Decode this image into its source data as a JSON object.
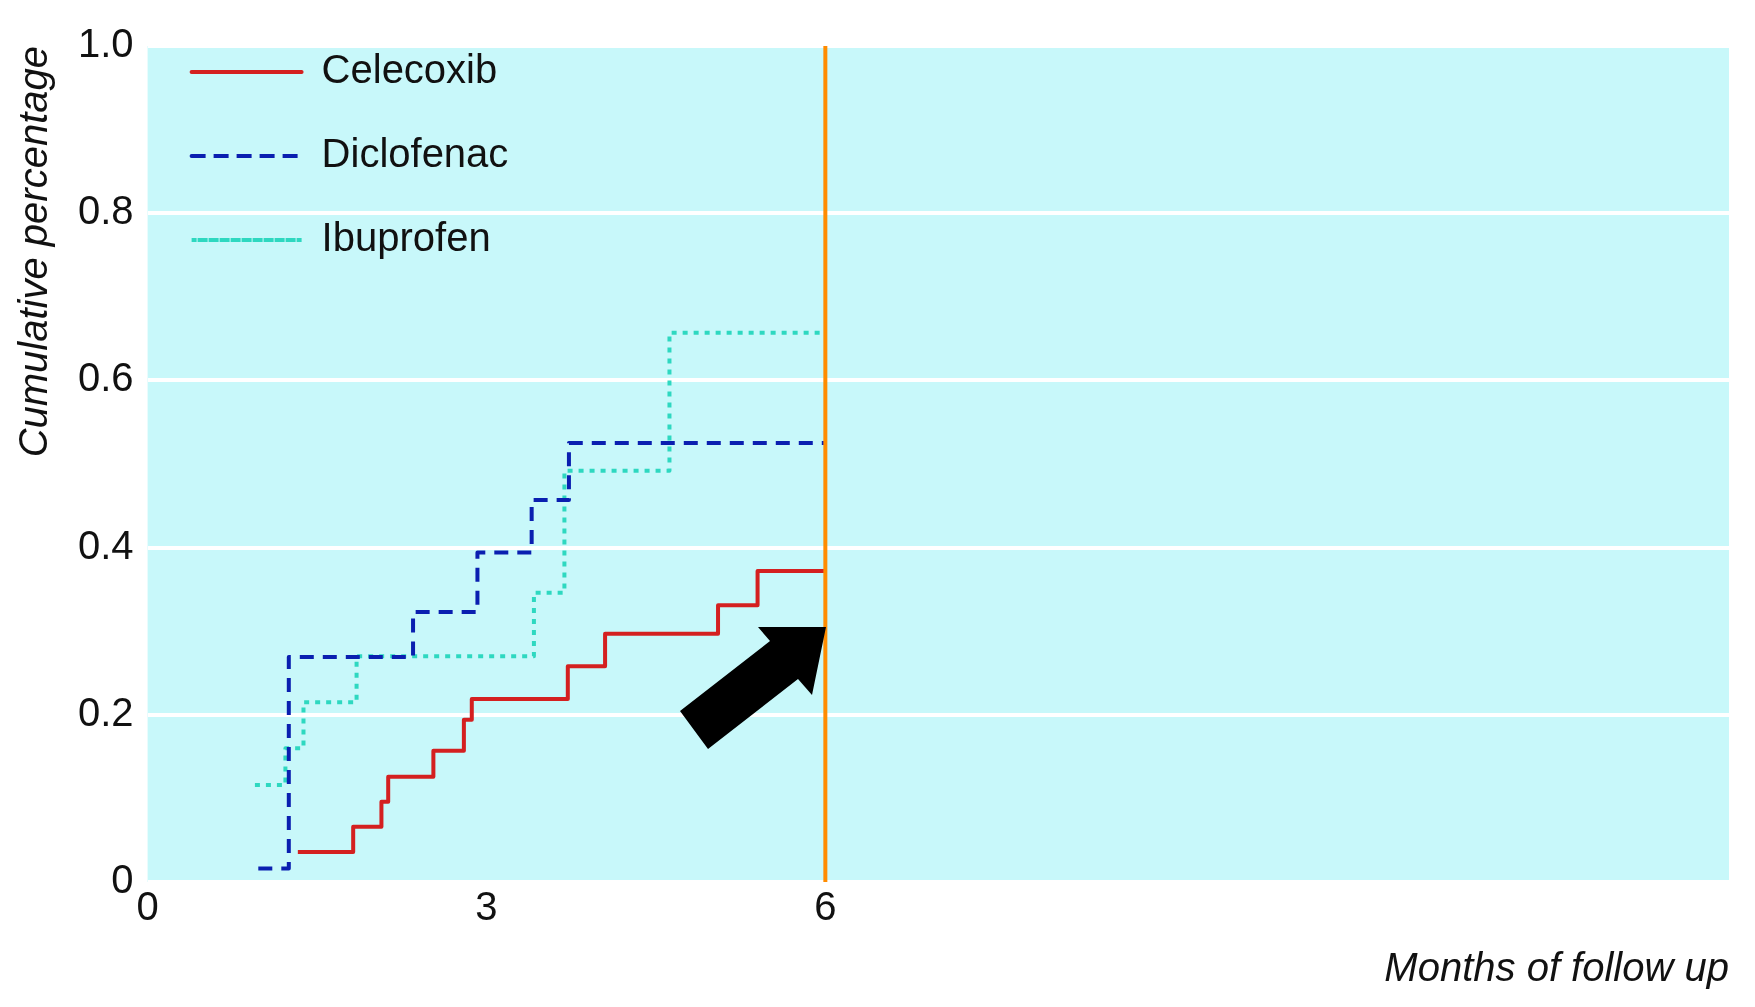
{
  "chart_data": {
    "type": "step",
    "xlabel": "Months of follow up",
    "ylabel": "Cumulative percentage",
    "xlim": [
      0,
      14
    ],
    "xticks": [
      0,
      3,
      6
    ],
    "ylim": [
      0,
      1
    ],
    "yticks": [
      0,
      {
        "value": 0.2,
        "label": "0.2"
      },
      {
        "value": 0.4,
        "label": "0.4"
      },
      {
        "value": 0.6,
        "label": "0.6"
      },
      {
        "value": 0.8,
        "label": "0.8"
      },
      {
        "value": 1,
        "label": "1.0"
      }
    ],
    "grid": "y",
    "legend": "top left",
    "marker": "none",
    "series": [
      {
        "name": "Celecoxib",
        "color": "#d42020",
        "line_style": "solid",
        "x": [
          1.33,
          1.82,
          2.07,
          2.13,
          2.53,
          2.8,
          2.87,
          3.72,
          4.05,
          5.05,
          5.4,
          6
        ],
        "values": [
          0.036,
          0.066,
          0.096,
          0.126,
          0.157,
          0.194,
          0.219,
          0.258,
          0.297,
          0.331,
          0.372,
          0.372
        ]
      },
      {
        "name": "Diclofenac",
        "color": "#0a1fb0",
        "line_style": "dashed",
        "x": [
          0.98,
          1.25,
          2.35,
          2.92,
          3.4,
          3.73,
          6
        ],
        "values": [
          0.016,
          0.269,
          0.323,
          0.394,
          0.457,
          0.525,
          0.525
        ]
      },
      {
        "name": "Ibuprofen",
        "color": "#2ed8c0",
        "line_style": "dotted",
        "x": [
          0.95,
          1.22,
          1.38,
          1.85,
          3.42,
          3.69,
          4.62,
          6
        ],
        "values": [
          0.116,
          0.16,
          0.215,
          0.27,
          0.346,
          0.492,
          0.657,
          0.657
        ]
      }
    ],
    "ref_lines": [
      {
        "axis": "x",
        "value": 6,
        "color": "#ff8c00"
      }
    ]
  }
}
